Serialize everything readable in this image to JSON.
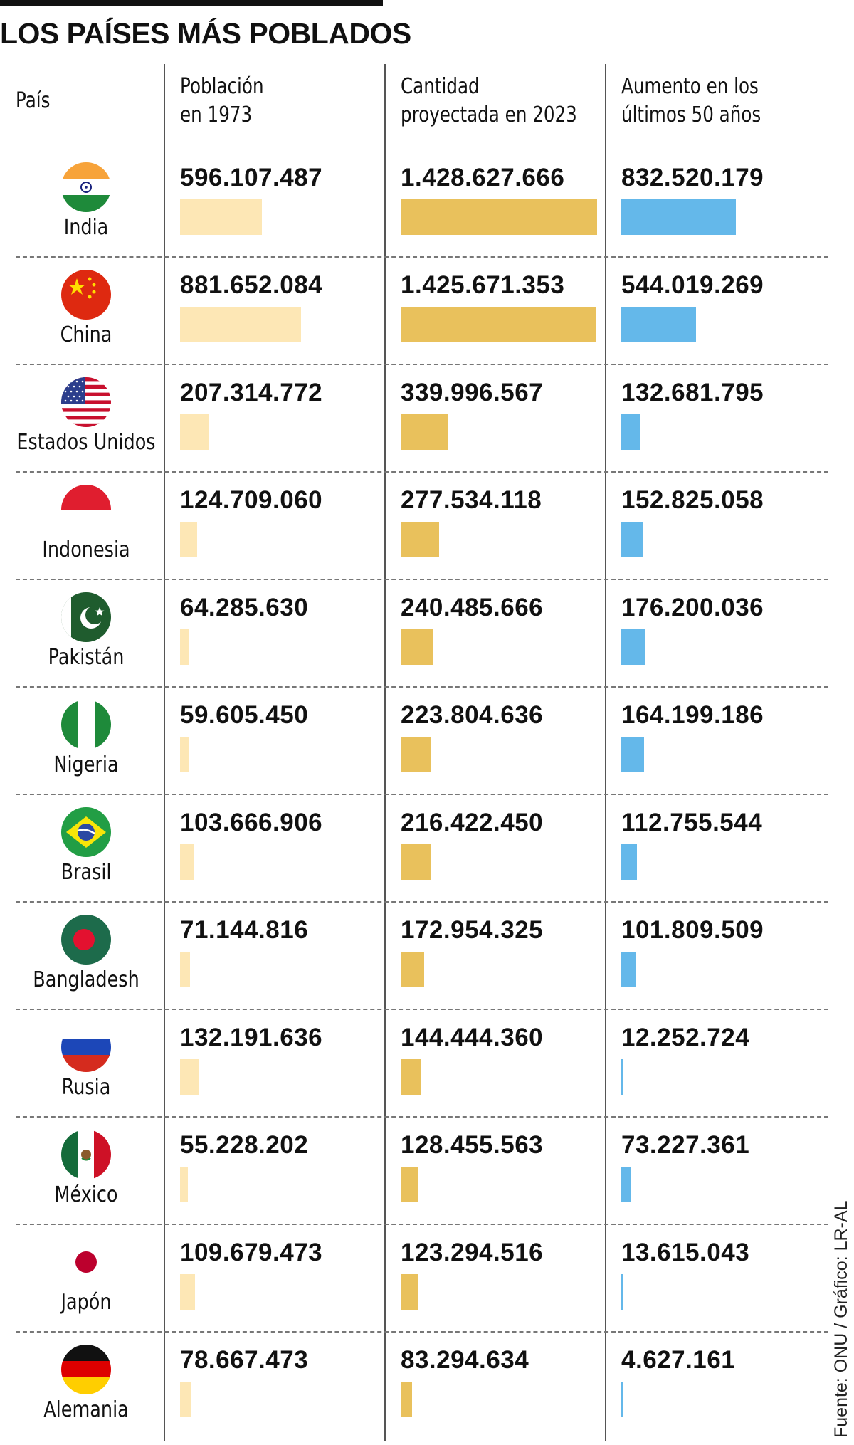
{
  "title": "LOS PAÍSES MÁS POBLADOS",
  "source": "Fuente: ONU / Gráfico: LR-AL",
  "headers": {
    "country": "País",
    "pop_1973": "Población\nen 1973",
    "pop_2023": "Cantidad\nproyectada en 2023",
    "increase": "Aumento en los\núltimos 50 años"
  },
  "colors": {
    "pop_1973": "#fde7b5",
    "pop_2023": "#e9c15c",
    "increase": "#64b8ea"
  },
  "chart_data": {
    "type": "table",
    "title": "LOS PAÍSES MÁS POBLADOS",
    "columns": [
      "País",
      "Población en 1973",
      "Cantidad proyectada en 2023",
      "Aumento en los últimos 50 años"
    ],
    "rows": [
      {
        "country": "India",
        "flag": "india-flag-icon",
        "pop_1973": 596107487,
        "pop_2023": 1428627666,
        "increase": 832520179,
        "pop_1973_label": "596.107.487",
        "pop_2023_label": "1.428.627.666",
        "increase_label": "832.520.179"
      },
      {
        "country": "China",
        "flag": "china-flag-icon",
        "pop_1973": 881652084,
        "pop_2023": 1425671353,
        "increase": 544019269,
        "pop_1973_label": "881.652.084",
        "pop_2023_label": "1.425.671.353",
        "increase_label": "544.019.269"
      },
      {
        "country": "Estados Unidos",
        "flag": "usa-flag-icon",
        "pop_1973": 207314772,
        "pop_2023": 339996567,
        "increase": 132681795,
        "pop_1973_label": "207.314.772",
        "pop_2023_label": "339.996.567",
        "increase_label": "132.681.795"
      },
      {
        "country": "Indonesia",
        "flag": "indonesia-flag-icon",
        "pop_1973": 124709060,
        "pop_2023": 277534118,
        "increase": 152825058,
        "pop_1973_label": "124.709.060",
        "pop_2023_label": "277.534.118",
        "increase_label": "152.825.058"
      },
      {
        "country": "Pakistán",
        "flag": "pakistan-flag-icon",
        "pop_1973": 64285630,
        "pop_2023": 240485666,
        "increase": 176200036,
        "pop_1973_label": "64.285.630",
        "pop_2023_label": "240.485.666",
        "increase_label": "176.200.036"
      },
      {
        "country": "Nigeria",
        "flag": "nigeria-flag-icon",
        "pop_1973": 59605450,
        "pop_2023": 223804636,
        "increase": 164199186,
        "pop_1973_label": "59.605.450",
        "pop_2023_label": "223.804.636",
        "increase_label": "164.199.186"
      },
      {
        "country": "Brasil",
        "flag": "brazil-flag-icon",
        "pop_1973": 103666906,
        "pop_2023": 216422450,
        "increase": 112755544,
        "pop_1973_label": "103.666.906",
        "pop_2023_label": "216.422.450",
        "increase_label": "112.755.544"
      },
      {
        "country": "Bangladesh",
        "flag": "bangladesh-flag-icon",
        "pop_1973": 71144816,
        "pop_2023": 172954325,
        "increase": 101809509,
        "pop_1973_label": "71.144.816",
        "pop_2023_label": "172.954.325",
        "increase_label": "101.809.509"
      },
      {
        "country": "Rusia",
        "flag": "russia-flag-icon",
        "pop_1973": 132191636,
        "pop_2023": 144444360,
        "increase": 12252724,
        "pop_1973_label": "132.191.636",
        "pop_2023_label": "144.444.360",
        "increase_label": "12.252.724"
      },
      {
        "country": "México",
        "flag": "mexico-flag-icon",
        "pop_1973": 55228202,
        "pop_2023": 128455563,
        "increase": 73227361,
        "pop_1973_label": "55.228.202",
        "pop_2023_label": "128.455.563",
        "increase_label": "73.227.361"
      },
      {
        "country": "Japón",
        "flag": "japan-flag-icon",
        "pop_1973": 109679473,
        "pop_2023": 123294516,
        "increase": 13615043,
        "pop_1973_label": "109.679.473",
        "pop_2023_label": "123.294.516",
        "increase_label": "13.615.043"
      },
      {
        "country": "Alemania",
        "flag": "germany-flag-icon",
        "pop_1973": 78667473,
        "pop_2023": 83294634,
        "increase": 4627161,
        "pop_1973_label": "78.667.473",
        "pop_2023_label": "83.294.634",
        "increase_label": "4.627.161"
      }
    ]
  }
}
